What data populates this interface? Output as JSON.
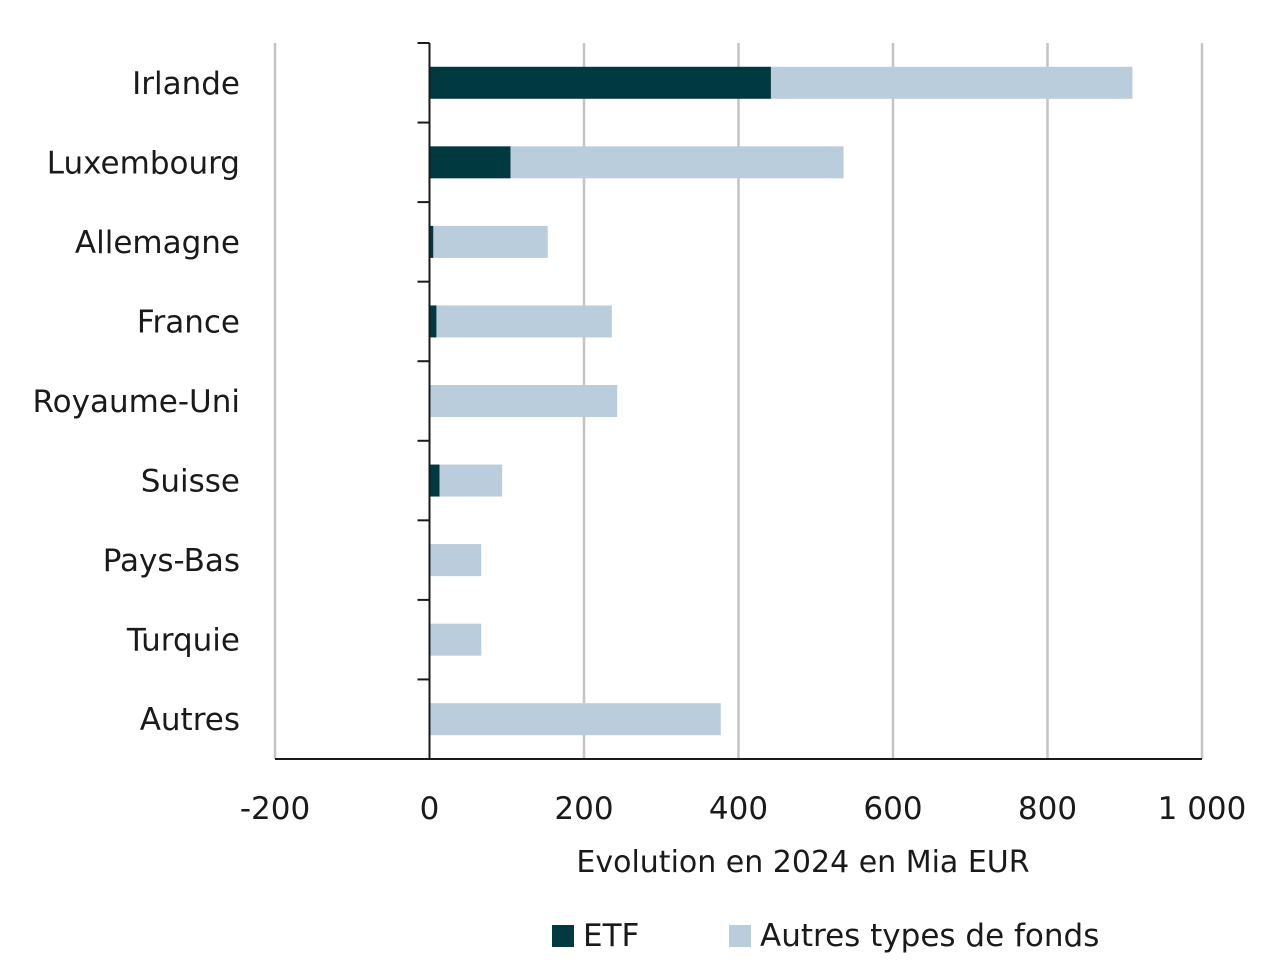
{
  "chart_data": {
    "type": "bar",
    "orientation": "horizontal",
    "stacked": true,
    "categories": [
      "Irlande",
      "Luxembourg",
      "Allemagne",
      "France",
      "Royaume-Uni",
      "Suisse",
      "Pays-Bas",
      "Turquie",
      "Autres"
    ],
    "series": [
      {
        "name": "ETF",
        "color": "#003a40",
        "values": [
          442,
          105,
          5,
          9,
          0,
          13,
          0,
          0,
          0
        ]
      },
      {
        "name": "Autres types de fonds",
        "color": "#b9cddc",
        "values": [
          468,
          431,
          148,
          227,
          243,
          81,
          67,
          67,
          377
        ]
      }
    ],
    "title": "",
    "xlabel": "Evolution en 2024 en Mia EUR",
    "ylabel": "",
    "xlim": [
      -200,
      1000
    ],
    "xticks": [
      -200,
      0,
      200,
      400,
      600,
      800,
      1000
    ],
    "xtick_labels": [
      "-200",
      "0",
      "200",
      "400",
      "600",
      "800",
      "1 000"
    ],
    "grid": "vertical",
    "legend": "bottom"
  }
}
